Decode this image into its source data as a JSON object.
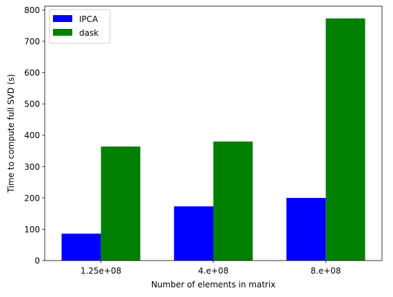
{
  "chart_data": {
    "type": "bar",
    "categories": [
      "1.25e+08",
      "4.e+08",
      "8.e+08"
    ],
    "series": [
      {
        "name": "IPCA",
        "color": "#0000ff",
        "values": [
          86,
          173,
          200
        ]
      },
      {
        "name": "dask",
        "color": "#008000",
        "values": [
          364,
          380,
          773
        ]
      }
    ],
    "title": "",
    "xlabel": "Number of elements in matrix",
    "ylabel": "Time to compute full SVD (s)",
    "ylim": [
      0,
      812
    ],
    "yticks": [
      0,
      100,
      200,
      300,
      400,
      500,
      600,
      700,
      800
    ],
    "grid": false,
    "legend_position": "top-left"
  }
}
